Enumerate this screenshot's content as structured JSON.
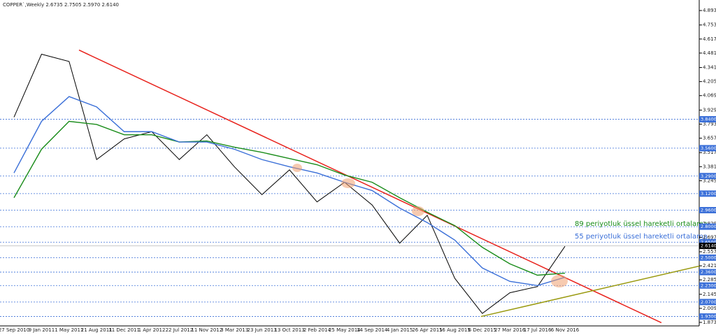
{
  "chart_data": {
    "type": "line",
    "title": "COPPER`,Weekly 2.6735 2.7505 2.5970 2.6140",
    "categories": [
      "27 Sep 2010",
      "9 Jan 2011",
      "1 May 2011",
      "21 Aug 2011",
      "11 Dec 2011",
      "1 Apr 2012",
      "22 Jul 2012",
      "11 Nov 2012",
      "3 Mar 2013",
      "23 Jun 2013",
      "13 Oct 2013",
      "2 Feb 2014",
      "25 May 2014",
      "14 Sep 2014",
      "4 Jan 2015",
      "26 Apr 2015",
      "16 Aug 2015",
      "6 Dec 2015",
      "27 Mar 2016",
      "17 Jul 2016",
      "6 Nov 2016"
    ],
    "series": [
      {
        "name": "COPPER",
        "color": "#000000",
        "values": [
          3.86,
          4.47,
          4.4,
          3.45,
          3.65,
          3.72,
          3.45,
          3.69,
          3.38,
          3.11,
          3.35,
          3.04,
          3.23,
          3.01,
          2.64,
          2.91,
          2.3,
          1.96,
          2.16,
          2.22,
          2.61
        ]
      },
      {
        "name": "89 periyotluk üssel hareketli ortalama",
        "color": "#1a8c1a",
        "values": [
          3.08,
          3.55,
          3.82,
          3.79,
          3.69,
          3.69,
          3.62,
          3.63,
          3.57,
          3.52,
          3.46,
          3.4,
          3.3,
          3.23,
          3.08,
          2.94,
          2.81,
          2.6,
          2.44,
          2.33,
          2.35
        ]
      },
      {
        "name": "55 periyotluk üssel hareketli ortalama",
        "color": "#3a6fd8",
        "values": [
          3.32,
          3.82,
          4.06,
          3.96,
          3.72,
          3.72,
          3.62,
          3.62,
          3.55,
          3.45,
          3.38,
          3.32,
          3.23,
          3.15,
          2.98,
          2.84,
          2.67,
          2.4,
          2.27,
          2.23,
          2.31
        ]
      }
    ],
    "trendlines": [
      {
        "color": "#e8221c",
        "x": [
          2.36,
          23.5
        ],
        "values": [
          4.51,
          1.87
        ]
      },
      {
        "color": "#9a9a10",
        "x": [
          16.95,
          24.9
        ],
        "values": [
          1.93,
          2.42
        ]
      }
    ],
    "ylim": [
      1.839,
      4.995
    ],
    "yticks": [
      {
        "value": 4.893,
        "label": "4.8930"
      },
      {
        "value": 4.753,
        "label": "4.7530"
      },
      {
        "value": 4.617,
        "label": "4.6170"
      },
      {
        "value": 4.481,
        "label": "4.4810"
      },
      {
        "value": 4.341,
        "label": "4.3410"
      },
      {
        "value": 4.205,
        "label": "4.2050"
      },
      {
        "value": 4.069,
        "label": "4.0690"
      },
      {
        "value": 3.929,
        "label": "3.9290"
      },
      {
        "value": 3.793,
        "label": "3.7930"
      },
      {
        "value": 3.657,
        "label": "3.6570"
      },
      {
        "value": 3.517,
        "label": "3.5170"
      },
      {
        "value": 3.381,
        "label": "3.3810"
      },
      {
        "value": 3.245,
        "label": "3.2450"
      },
      {
        "value": 2.829,
        "label": "2.8290"
      },
      {
        "value": 2.697,
        "label": "2.6970"
      },
      {
        "value": 2.557,
        "label": "2.5570"
      },
      {
        "value": 2.421,
        "label": "2.4210"
      },
      {
        "value": 2.285,
        "label": "2.2850"
      },
      {
        "value": 2.145,
        "label": "2.1450"
      },
      {
        "value": 2.009,
        "label": "2.0090"
      },
      {
        "value": 1.873,
        "label": "1.8730"
      }
    ],
    "levels": [
      {
        "value": 3.84,
        "label": "3.8400"
      },
      {
        "value": 3.56,
        "label": "3.5600"
      },
      {
        "value": 3.29,
        "label": "3.2900"
      },
      {
        "value": 3.12,
        "label": "3.1200"
      },
      {
        "value": 2.96,
        "label": "2.9600"
      },
      {
        "value": 2.8,
        "label": "2.8000"
      },
      {
        "value": 2.65,
        "label": "2.6500"
      },
      {
        "value": 2.5,
        "label": "2.5000"
      },
      {
        "value": 2.36,
        "label": "2.3600"
      },
      {
        "value": 2.23,
        "label": "2.2300"
      },
      {
        "value": 2.07,
        "label": "2.0700"
      },
      {
        "value": 1.93,
        "label": "1.9300"
      }
    ],
    "levels_color": "#3a6fd8",
    "last_price": {
      "value": 2.614,
      "label": "2.6140"
    }
  }
}
